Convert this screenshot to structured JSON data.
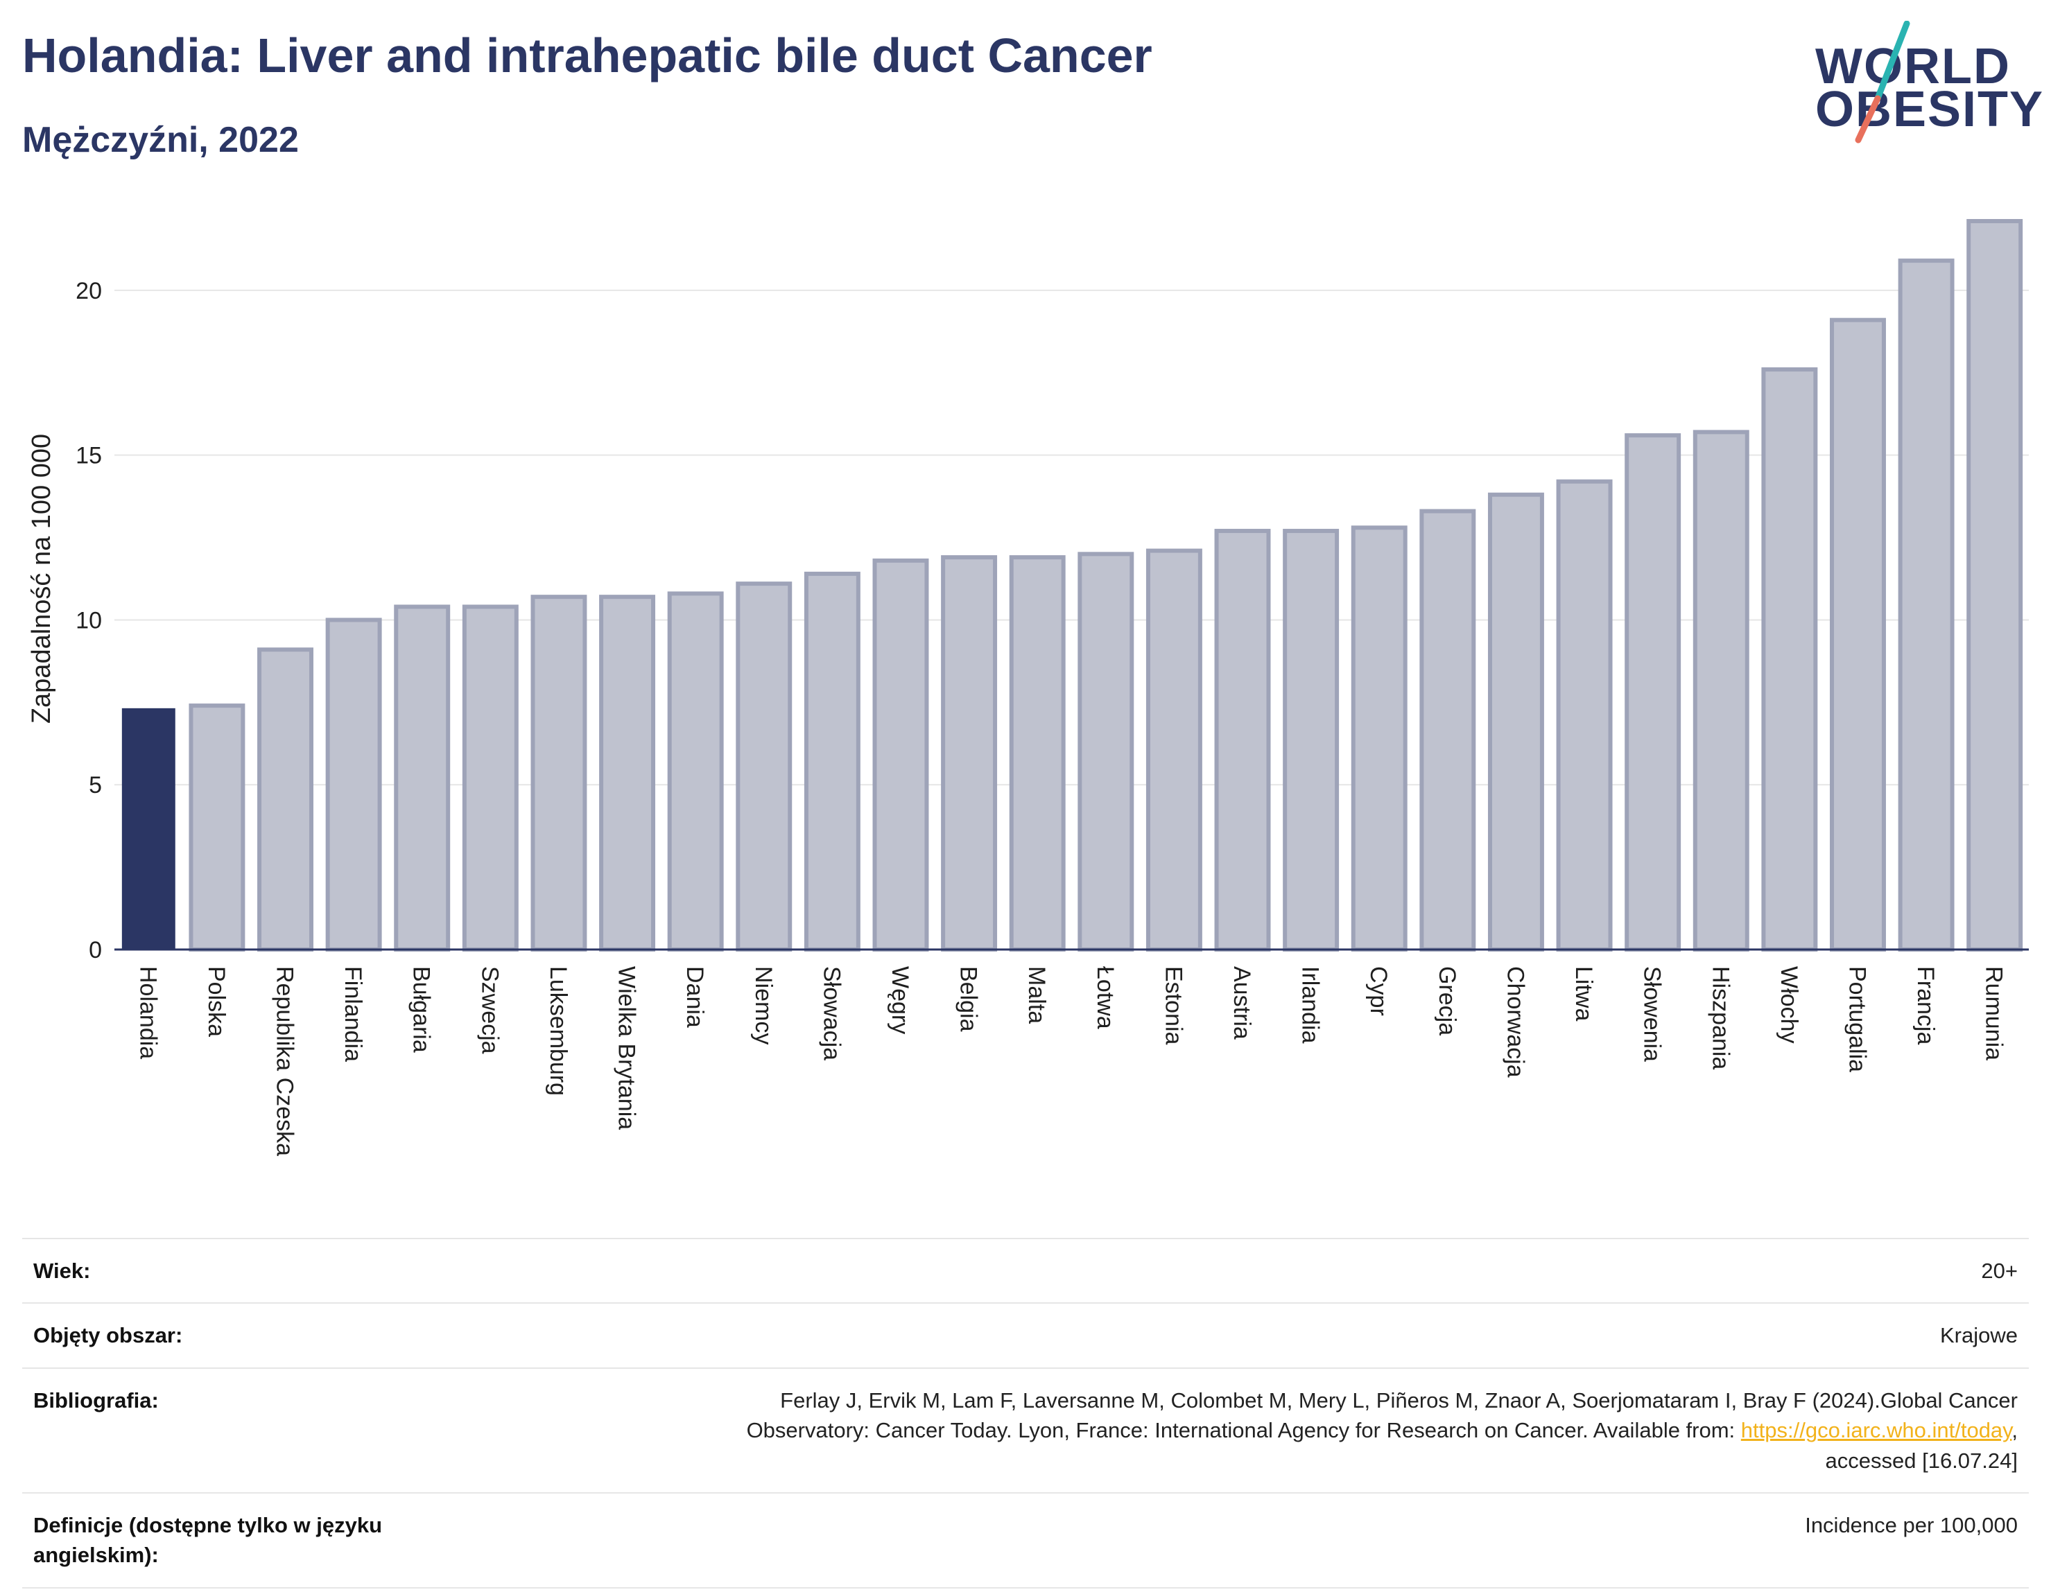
{
  "header": {
    "title": "Holandia: Liver and intrahepatic bile duct Cancer",
    "subtitle": "Mężczyźni, 2022"
  },
  "logo": {
    "line1": "WORLD",
    "line2": "OBESITY",
    "slash_colors": [
      "#2ab3b1",
      "#e8705c"
    ]
  },
  "colors": {
    "highlight": "#2b3664",
    "bar_fill": "#bfc2cf",
    "bar_stroke": "#9ea3b8",
    "grid": "#e6e6e6",
    "axis": "#2b3664"
  },
  "chart_data": {
    "type": "bar",
    "title": "",
    "xlabel": "",
    "ylabel": "Zapadalność na 100 000",
    "ylim": [
      0,
      22.5
    ],
    "yticks": [
      0,
      5,
      10,
      15,
      20
    ],
    "grid": true,
    "highlight_category": "Holandia",
    "categories": [
      "Holandia",
      "Polska",
      "Republika Czeska",
      "Finlandia",
      "Bułgaria",
      "Szwecja",
      "Luksemburg",
      "Wielka Brytania",
      "Dania",
      "Niemcy",
      "Słowacja",
      "Węgry",
      "Belgia",
      "Malta",
      "Łotwa",
      "Estonia",
      "Austria",
      "Irlandia",
      "Cypr",
      "Grecja",
      "Chorwacja",
      "Litwa",
      "Słowenia",
      "Hiszpania",
      "Włochy",
      "Portugalia",
      "Francja",
      "Rumunia"
    ],
    "values": [
      7.3,
      7.4,
      9.1,
      10.0,
      10.4,
      10.4,
      10.7,
      10.7,
      10.8,
      11.1,
      11.4,
      11.8,
      11.9,
      11.9,
      12.0,
      12.1,
      12.7,
      12.7,
      12.8,
      13.3,
      13.8,
      14.2,
      15.6,
      15.7,
      17.6,
      19.1,
      20.9,
      22.1
    ]
  },
  "info": {
    "age_label": "Wiek:",
    "age_value": "20+",
    "coverage_label": "Objęty obszar:",
    "coverage_value": "Krajowe",
    "bibliography_label": "Bibliografia:",
    "bibliography_line1": "Ferlay J, Ervik M, Lam F, Laversanne M, Colombet M, Mery L, Piñeros M, Znaor A, Soerjomataram I, Bray F (2024).Global Cancer",
    "bibliography_line2_pre": "Observatory: Cancer Today. Lyon, France: International Agency for Research on Cancer. Available from: ",
    "bibliography_link": "https://gco.iarc.who.int/today",
    "bibliography_line2_post": ",",
    "bibliography_line3": "accessed [16.07.24]",
    "definitions_label": "Definicje (dostępne tylko w języku angielskim):",
    "definitions_value": "Incidence per 100,000"
  }
}
